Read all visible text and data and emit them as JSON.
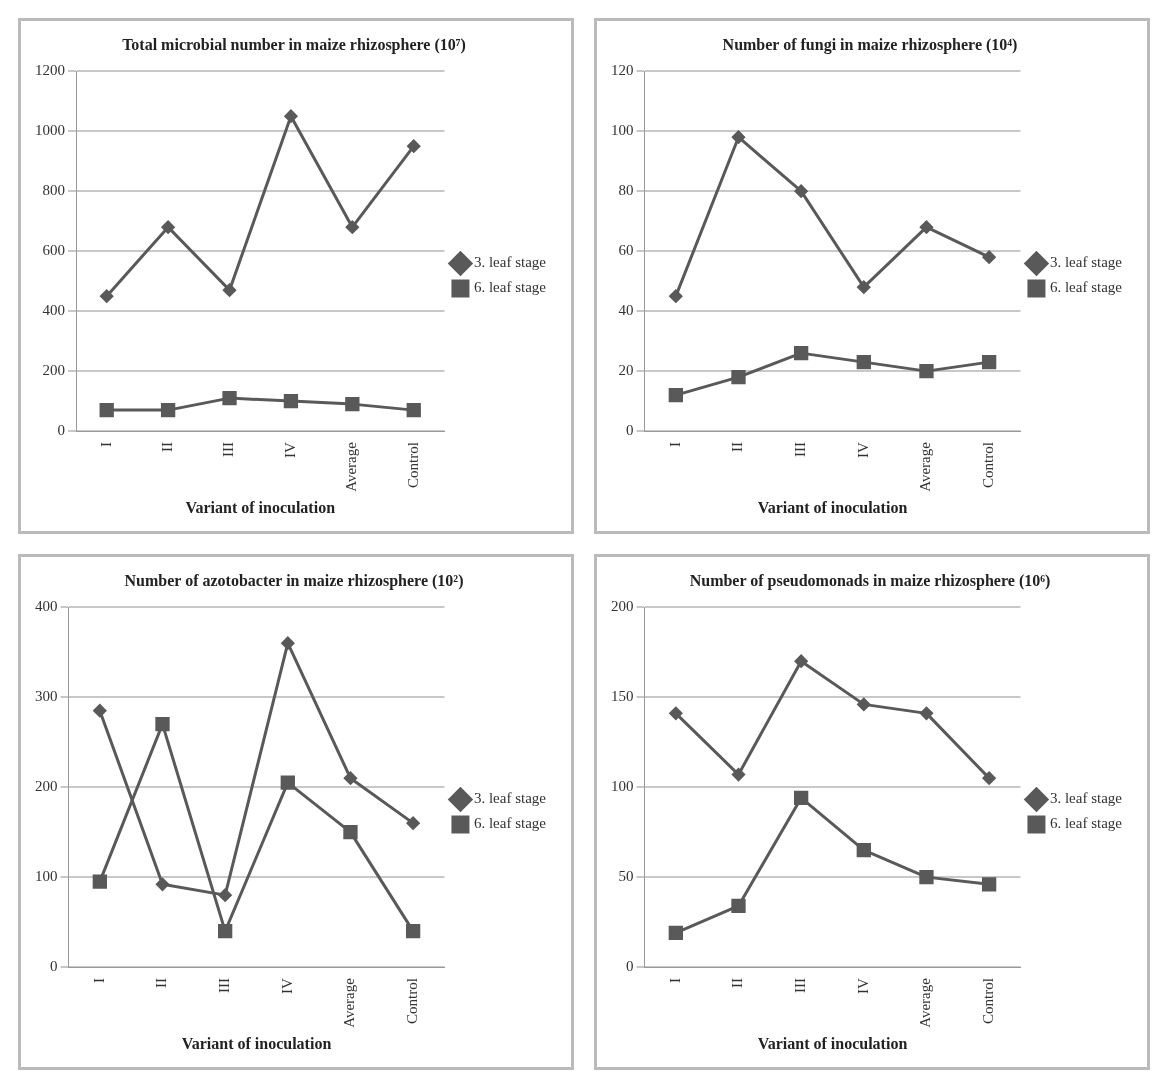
{
  "chart_data": [
    {
      "type": "line",
      "title": "Total microbial number in maize rhizosphere (10⁷)",
      "xlabel": "Variant of inoculation",
      "categories": [
        "I",
        "II",
        "III",
        "IV",
        "Average",
        "Control"
      ],
      "series": [
        {
          "name": "3. leaf stage",
          "color": "#595959",
          "marker": "diamond",
          "values": [
            450,
            680,
            470,
            1050,
            680,
            950
          ]
        },
        {
          "name": "6. leaf stage",
          "color": "#595959",
          "marker": "square",
          "values": [
            70,
            70,
            110,
            100,
            90,
            70
          ]
        }
      ],
      "ylim": [
        0,
        1200
      ],
      "yticks": [
        0,
        200,
        400,
        600,
        800,
        1000,
        1200
      ],
      "grid": "y",
      "legend": "right"
    },
    {
      "type": "line",
      "title": "Number of fungi in maize rhizosphere (10⁴)",
      "xlabel": "Variant of inoculation",
      "categories": [
        "I",
        "II",
        "III",
        "IV",
        "Average",
        "Control"
      ],
      "series": [
        {
          "name": "3. leaf stage",
          "color": "#595959",
          "marker": "diamond",
          "values": [
            45,
            98,
            80,
            48,
            68,
            58
          ]
        },
        {
          "name": "6. leaf stage",
          "color": "#595959",
          "marker": "square",
          "values": [
            12,
            18,
            26,
            23,
            20,
            23
          ]
        }
      ],
      "ylim": [
        0,
        120
      ],
      "yticks": [
        0,
        20,
        40,
        60,
        80,
        100,
        120
      ],
      "grid": "y",
      "legend": "right"
    },
    {
      "type": "line",
      "title": "Number of azotobacter in maize rhizosphere (10²)",
      "xlabel": "Variant of inoculation",
      "categories": [
        "I",
        "II",
        "III",
        "IV",
        "Average",
        "Control"
      ],
      "series": [
        {
          "name": "3. leaf stage",
          "color": "#595959",
          "marker": "diamond",
          "values": [
            285,
            92,
            80,
            360,
            210,
            160
          ]
        },
        {
          "name": "6. leaf stage",
          "color": "#595959",
          "marker": "square",
          "values": [
            95,
            270,
            40,
            205,
            150,
            40
          ]
        }
      ],
      "ylim": [
        0,
        400
      ],
      "yticks": [
        0,
        100,
        200,
        300,
        400
      ],
      "grid": "y",
      "legend": "right"
    },
    {
      "type": "line",
      "title": "Number of pseudomonads in maize rhizosphere (10⁶)",
      "xlabel": "Variant of inoculation",
      "categories": [
        "I",
        "II",
        "III",
        "IV",
        "Average",
        "Control"
      ],
      "series": [
        {
          "name": "3. leaf stage",
          "color": "#595959",
          "marker": "diamond",
          "values": [
            141,
            107,
            170,
            146,
            141,
            105
          ]
        },
        {
          "name": "6. leaf stage",
          "color": "#595959",
          "marker": "square",
          "values": [
            19,
            34,
            94,
            65,
            50,
            46
          ]
        }
      ],
      "ylim": [
        0,
        200
      ],
      "yticks": [
        0,
        50,
        100,
        150,
        200
      ],
      "grid": "y",
      "legend": "right"
    }
  ]
}
